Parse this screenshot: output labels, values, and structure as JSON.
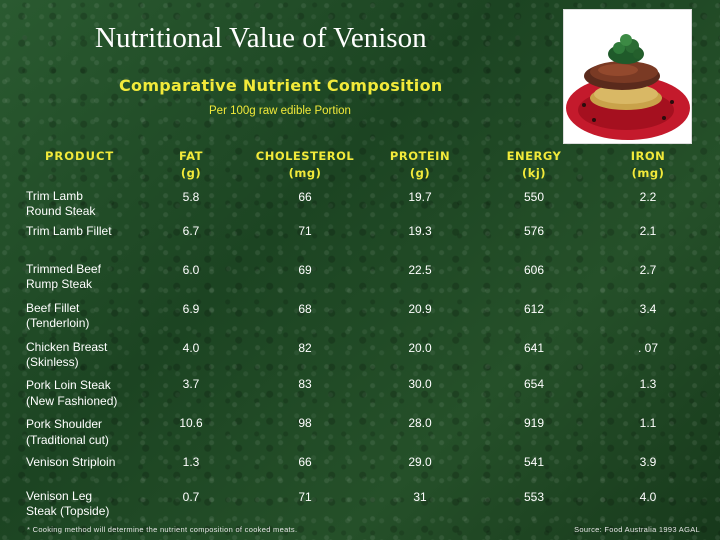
{
  "title": "Nutritional Value of Venison",
  "subtitle": "Comparative Nutrient Composition",
  "portion": "Per 100g raw edible Portion",
  "table": {
    "product_header": "PRODUCT",
    "columns": [
      {
        "name": "FAT",
        "unit": "(g)"
      },
      {
        "name": "CHOLESTEROL",
        "unit": "(mg)"
      },
      {
        "name": "PROTEIN",
        "unit": "(g)"
      },
      {
        "name": "ENERGY",
        "unit": "(kj)"
      },
      {
        "name": "IRON",
        "unit": "(mg)"
      }
    ],
    "rows": [
      {
        "product_line1": "Trim Lamb",
        "product_line2": "Round Steak",
        "values": [
          "5.8",
          "66",
          "19.7",
          "550",
          "2.2"
        ]
      },
      {
        "product_line1": "Trim Lamb Fillet",
        "product_line2": "",
        "values": [
          "6.7",
          "71",
          "19.3",
          "576",
          "2.1"
        ]
      },
      {
        "product_line1": "Trimmed Beef",
        "product_line2": "Rump Steak",
        "values": [
          "6.0",
          "69",
          "22.5",
          "606",
          "2.7"
        ]
      },
      {
        "product_line1": "Beef Fillet",
        "product_line2": "(Tenderloin)",
        "values": [
          "6.9",
          "68",
          "20.9",
          "612",
          "3.4"
        ]
      },
      {
        "product_line1": "Chicken Breast",
        "product_line2": "(Skinless)",
        "values": [
          "4.0",
          "82",
          "20.0",
          "641",
          ". 07"
        ]
      },
      {
        "product_line1": "Pork Loin Steak",
        "product_line2": "(New Fashioned)",
        "values": [
          "3.7",
          "83",
          "30.0",
          "654",
          "1.3"
        ]
      },
      {
        "product_line1": "Pork Shoulder",
        "product_line2": "(Traditional cut)",
        "values": [
          "10.6",
          "98",
          "28.0",
          "919",
          "1.1"
        ]
      },
      {
        "product_line1": "Venison Striploin",
        "product_line2": "",
        "values": [
          "1.3",
          "66",
          "29.0",
          "541",
          "3.9"
        ]
      },
      {
        "product_line1": "Venison Leg",
        "product_line2": "Steak (Topside)",
        "values": [
          "0.7",
          "71",
          "31",
          "553",
          "4.0"
        ]
      }
    ]
  },
  "footnote": "* Cooking method will determine the nutrient composition of cooked meats.",
  "source": "Source: Food Australia 1993 AGAL",
  "colors": {
    "background": "#1f4a25",
    "heading": "#f2ea3a",
    "text": "#ffffff"
  },
  "image": {
    "subject": "plated venison dish"
  }
}
